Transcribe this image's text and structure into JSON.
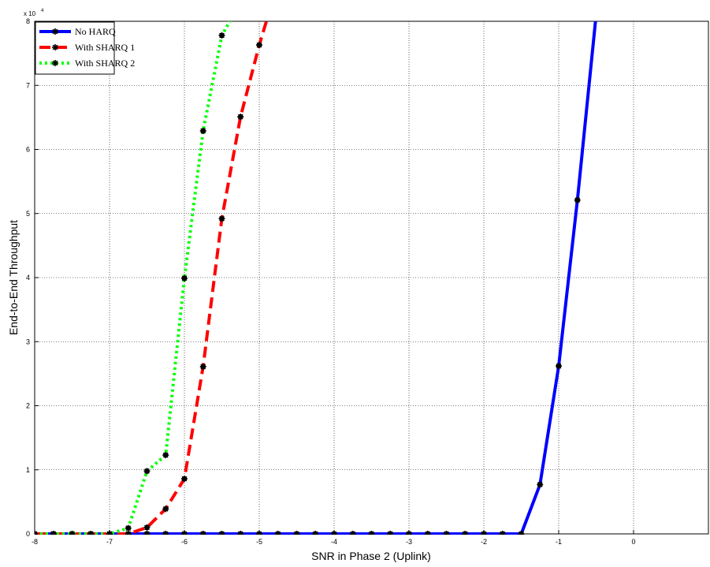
{
  "chart_data": {
    "type": "line",
    "xlabel": "SNR in Phase 2 (Uplink)",
    "ylabel": "End-to-End Throughput",
    "y_multiplier": "x 10",
    "y_multiplier_exponent": "4",
    "x": [
      -8,
      -7.75,
      -7.5,
      -7.25,
      -7,
      -6.75,
      -6.5,
      -6.25,
      -6,
      -5.75,
      -5.5,
      -5.25,
      -5,
      -4.75,
      -4.5,
      -4.25,
      -4,
      -3.75,
      -3.5,
      -3.25,
      -3,
      -2.75,
      -2.5,
      -2.25,
      -2,
      -1.75,
      -1.5,
      -1.25,
      -1,
      -0.75,
      -0.5
    ],
    "series": [
      {
        "name": "No HARQ",
        "color": "#0000ff",
        "dash": "solid",
        "values": [
          0,
          0,
          0,
          0,
          0,
          0,
          0,
          0,
          0,
          0,
          0,
          0,
          0,
          0,
          0,
          0,
          0,
          0,
          0,
          0,
          0,
          0,
          0,
          0,
          0,
          0,
          0,
          7700,
          26200,
          52100,
          81000
        ]
      },
      {
        "name": "With SHARQ 1",
        "color": "#ff0000",
        "dash": "dashed",
        "values": [
          0,
          0,
          0,
          0,
          0,
          0,
          1000,
          3900,
          8600,
          26100,
          49200,
          65100,
          76300,
          86000,
          null,
          null,
          null,
          null,
          null,
          null,
          null,
          null,
          null,
          null,
          null,
          null,
          null,
          null,
          null,
          null,
          null
        ]
      },
      {
        "name": "With SHARQ 2",
        "color": "#00ff00",
        "dash": "dotted",
        "values": [
          0,
          0,
          0,
          0,
          0,
          900,
          9800,
          12300,
          39900,
          62900,
          77800,
          83000,
          null,
          null,
          null,
          null,
          null,
          null,
          null,
          null,
          null,
          null,
          null,
          null,
          null,
          null,
          null,
          null,
          null,
          null,
          null
        ]
      }
    ],
    "marker_color": "#000000",
    "xlim": [
      -8,
      1
    ],
    "xticks": [
      -8,
      -7,
      -6,
      -5,
      -4,
      -3,
      -2,
      -1,
      0
    ],
    "ylim": [
      0,
      80000
    ],
    "yticks": [
      0,
      {
        "value": 10000,
        "label": "1"
      },
      {
        "value": 20000,
        "label": "2"
      },
      {
        "value": 30000,
        "label": "3"
      },
      {
        "value": 40000,
        "label": "4"
      },
      {
        "value": 50000,
        "label": "5"
      },
      {
        "value": 60000,
        "label": "6"
      },
      {
        "value": 70000,
        "label": "7"
      },
      {
        "value": 80000,
        "label": "8"
      }
    ],
    "grid": true,
    "legend": "upper left"
  }
}
